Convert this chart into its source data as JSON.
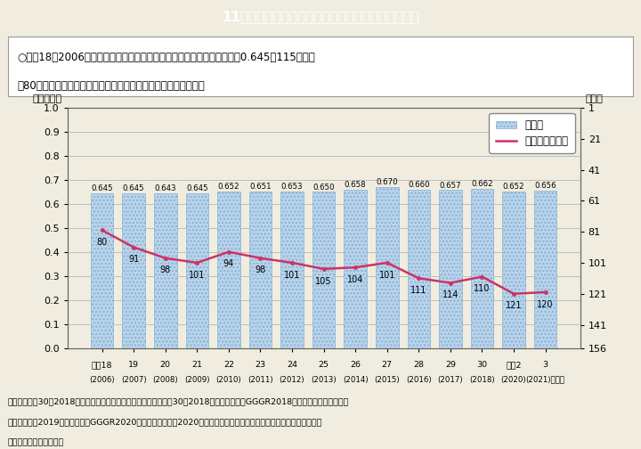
{
  "title": "11－３図　日本のジェンダー・ギャップ指数の推移",
  "subtitle_line1": "○平成18（2006）年にＧＧＩが初めて公表された際の日本のスコアは、0.645で115か国中",
  "subtitle_line2": "　80位。その後スコアはほぼ横ばいとなっており、順位は下降。",
  "note_line1": "（備考）平成30（2018）年公表までは、公表年のレポート（平成30（2018）年公表分ならGGGR2018）が公表されていたが、",
  "note_line2": "　　令和元（2019）年公表分はGGGR2020となり、令和２（2020）年のインデックスとして公表されたため、年の数字",
  "note_line3": "　　が連続していない。",
  "years_top": [
    "平成18",
    "19",
    "20",
    "21",
    "22",
    "23",
    "24",
    "25",
    "26",
    "27",
    "28",
    "29",
    "30",
    "令和2",
    "3"
  ],
  "years_bottom": [
    "(2006)",
    "(2007)",
    "(2008)",
    "(2009)",
    "(2010)",
    "(2011)",
    "(2012)",
    "(2013)",
    "(2014)",
    "(2015)",
    "(2016)",
    "(2017)",
    "(2018)",
    "(2020)",
    "(2021)（年）"
  ],
  "scores": [
    0.645,
    0.645,
    0.643,
    0.645,
    0.652,
    0.651,
    0.653,
    0.65,
    0.658,
    0.67,
    0.66,
    0.657,
    0.662,
    0.652,
    0.656
  ],
  "ranks": [
    80,
    91,
    98,
    101,
    94,
    98,
    101,
    105,
    104,
    101,
    111,
    114,
    110,
    121,
    120
  ],
  "bar_facecolor": "#b8d4ec",
  "bar_edgecolor": "#8ab0d0",
  "line_color": "#cc3366",
  "ylabel_left": "（スコア）",
  "ylabel_right": "（位）",
  "yticks_right": [
    1,
    21,
    41,
    61,
    81,
    101,
    121,
    141,
    156
  ],
  "legend_score": "スコア",
  "legend_rank": "順位（右目盛）",
  "title_bg_color": "#00bcd4",
  "title_text_color": "#ffffff",
  "fig_bg_color": "#f0ede0",
  "plot_bg_color": "#f0ede0"
}
